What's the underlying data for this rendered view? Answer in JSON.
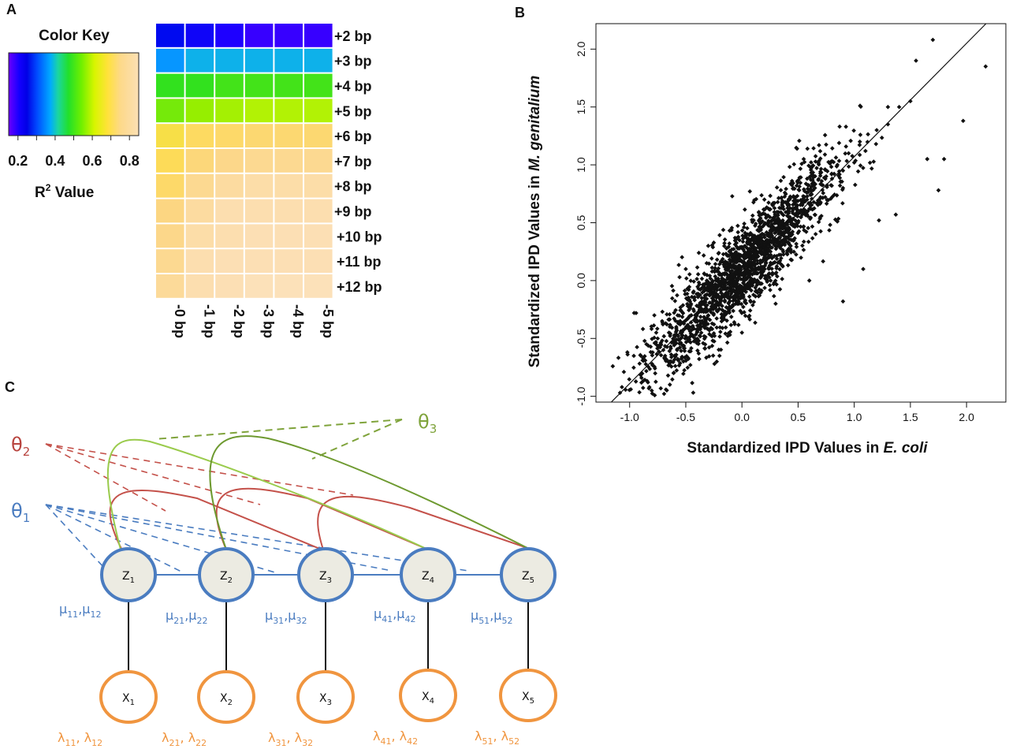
{
  "panels": {
    "a": "A",
    "b": "B",
    "c": "C"
  },
  "colors": {
    "blue": "#4a7cc0",
    "red": "#b8443f",
    "green_dark": "#6e9a30",
    "green_light": "#9acb4c",
    "orange": "#f0953f",
    "node_fill": "#ecebe2",
    "theta1": "#4a7cc0",
    "theta2": "#b8443f",
    "theta3": "#7fa33b"
  },
  "heatmap": {
    "color_key_title": "Color Key",
    "color_key_ticks": [
      "0.2",
      "0.4",
      "0.6",
      "0.8"
    ],
    "color_key_label_main": "R",
    "color_key_label_sup": "2",
    "color_key_label_rest": " Value",
    "row_labels": [
      "+2 bp",
      "+3 bp",
      "+4 bp",
      "+5 bp",
      "+6 bp",
      "+7 bp",
      "+8 bp",
      "+9 bp",
      "+10 bp",
      "+11 bp",
      "+12 bp"
    ],
    "col_labels": [
      "-0 bp",
      "-1 bp",
      "-2 bp",
      "-3 bp",
      "-4 bp",
      "-5 bp"
    ]
  },
  "chart_data": [
    {
      "type": "heatmap",
      "title": "",
      "rows": [
        "+2 bp",
        "+3 bp",
        "+4 bp",
        "+5 bp",
        "+6 bp",
        "+7 bp",
        "+8 bp",
        "+9 bp",
        "+10 bp",
        "+11 bp",
        "+12 bp"
      ],
      "columns": [
        "-0 bp",
        "-1 bp",
        "-2 bp",
        "-3 bp",
        "-4 bp",
        "-5 bp"
      ],
      "value_label": "R² Value",
      "range": [
        0.15,
        0.85
      ],
      "values": [
        [
          0.22,
          0.2,
          0.18,
          0.17,
          0.17,
          0.17
        ],
        [
          0.36,
          0.39,
          0.39,
          0.39,
          0.39,
          0.39
        ],
        [
          0.52,
          0.52,
          0.53,
          0.53,
          0.53,
          0.53
        ],
        [
          0.56,
          0.58,
          0.59,
          0.6,
          0.6,
          0.6
        ],
        [
          0.69,
          0.72,
          0.73,
          0.74,
          0.74,
          0.74
        ],
        [
          0.71,
          0.75,
          0.77,
          0.78,
          0.78,
          0.78
        ],
        [
          0.73,
          0.78,
          0.8,
          0.81,
          0.81,
          0.81
        ],
        [
          0.76,
          0.8,
          0.82,
          0.82,
          0.82,
          0.82
        ],
        [
          0.77,
          0.81,
          0.82,
          0.83,
          0.83,
          0.83
        ],
        [
          0.78,
          0.82,
          0.83,
          0.83,
          0.83,
          0.83
        ],
        [
          0.79,
          0.82,
          0.83,
          0.84,
          0.84,
          0.84
        ]
      ]
    },
    {
      "type": "scatter",
      "title": "",
      "xlabel_plain": "Standardized IPD Values in ",
      "xlabel_italic": "E. coli",
      "ylabel_plain": "Standardized IPD Values in ",
      "ylabel_italic": "M. genitalium",
      "xlim": [
        -1.3,
        2.35
      ],
      "ylim": [
        -1.05,
        2.22
      ],
      "xticks": [
        -1.0,
        -0.5,
        0.0,
        0.5,
        1.0,
        1.5,
        2.0
      ],
      "yticks": [
        -1.0,
        -0.5,
        0.0,
        0.5,
        1.0,
        1.5,
        2.0
      ],
      "xtick_labels": [
        "-1.0",
        "-0.5",
        "0.0",
        "0.5",
        "1.0",
        "1.5",
        "2.0"
      ],
      "ytick_labels": [
        "-1.0",
        "-0.5",
        "0.0",
        "0.5",
        "1.0",
        "1.5",
        "2.0"
      ],
      "fit_line": {
        "slope": 0.98,
        "intercept": 0.09
      },
      "points_summary": "about 2000 points tightly clustered along the fit line, x range about -1.15 to 2.2",
      "points": [
        [
          -1.15,
          -0.74
        ],
        [
          -1.02,
          -0.62
        ],
        [
          -0.96,
          -0.28
        ],
        [
          -0.9,
          -0.65
        ],
        [
          -0.85,
          -0.55
        ],
        [
          -0.8,
          -0.72
        ],
        [
          -0.75,
          -0.5
        ],
        [
          -0.7,
          -0.6
        ],
        [
          -0.65,
          -0.45
        ],
        [
          -0.6,
          -0.52
        ],
        [
          -0.55,
          -0.35
        ],
        [
          -0.5,
          -0.48
        ],
        [
          -0.45,
          -0.3
        ],
        [
          -0.4,
          -0.42
        ],
        [
          -0.35,
          -0.2
        ],
        [
          -0.3,
          -0.3
        ],
        [
          -0.25,
          -0.1
        ],
        [
          -0.2,
          -0.2
        ],
        [
          -0.15,
          0.0
        ],
        [
          -0.1,
          -0.05
        ],
        [
          -0.05,
          0.1
        ],
        [
          0.0,
          0.05
        ],
        [
          0.05,
          0.15
        ],
        [
          0.1,
          0.1
        ],
        [
          0.15,
          0.3
        ],
        [
          0.2,
          0.2
        ],
        [
          0.25,
          0.4
        ],
        [
          0.3,
          0.3
        ],
        [
          0.35,
          0.5
        ],
        [
          0.4,
          0.42
        ],
        [
          0.45,
          0.6
        ],
        [
          0.5,
          0.5
        ],
        [
          0.55,
          0.7
        ],
        [
          0.6,
          0.62
        ],
        [
          0.65,
          0.8
        ],
        [
          0.7,
          0.72
        ],
        [
          0.75,
          0.9
        ],
        [
          0.8,
          0.82
        ],
        [
          0.85,
          1.0
        ],
        [
          0.9,
          0.95
        ],
        [
          0.95,
          1.1
        ],
        [
          1.0,
          1.02
        ],
        [
          1.05,
          1.2
        ],
        [
          1.1,
          1.12
        ],
        [
          1.2,
          1.3
        ],
        [
          1.3,
          1.35
        ],
        [
          1.4,
          1.5
        ],
        [
          1.5,
          1.55
        ],
        [
          1.55,
          1.9
        ],
        [
          1.65,
          1.05
        ],
        [
          1.7,
          2.08
        ],
        [
          1.75,
          0.78
        ],
        [
          1.8,
          1.05
        ],
        [
          1.97,
          1.38
        ],
        [
          2.17,
          1.85
        ],
        [
          1.37,
          0.57
        ],
        [
          1.08,
          0.1
        ],
        [
          0.9,
          -0.18
        ],
        [
          -0.78,
          -0.3
        ],
        [
          -0.5,
          0.1
        ],
        [
          -0.3,
          0.3
        ],
        [
          0.2,
          0.7
        ],
        [
          0.55,
          1.05
        ],
        [
          0.3,
          -0.2
        ],
        [
          0.0,
          -0.45
        ],
        [
          -0.2,
          -0.65
        ],
        [
          0.6,
          0.0
        ],
        [
          1.22,
          0.52
        ],
        [
          1.3,
          1.5
        ]
      ]
    }
  ],
  "model": {
    "theta1": "θ",
    "theta1_sub": "1",
    "theta2": "θ",
    "theta2_sub": "2",
    "theta3": "θ",
    "theta3_sub": "3",
    "z_nodes": [
      {
        "main": "Z",
        "sub": "1"
      },
      {
        "main": "Z",
        "sub": "2"
      },
      {
        "main": "Z",
        "sub": "3"
      },
      {
        "main": "Z",
        "sub": "4"
      },
      {
        "main": "Z",
        "sub": "5"
      }
    ],
    "x_nodes": [
      {
        "main": "X",
        "sub": "1"
      },
      {
        "main": "X",
        "sub": "2"
      },
      {
        "main": "X",
        "sub": "3"
      },
      {
        "main": "X",
        "sub": "4"
      },
      {
        "main": "X",
        "sub": "5"
      }
    ],
    "mu_labels": [
      {
        "a": "μ",
        "a_sub": "11",
        "b": "μ",
        "b_sub": "12"
      },
      {
        "a": "μ",
        "a_sub": "21",
        "b": "μ",
        "b_sub": "22"
      },
      {
        "a": "μ",
        "a_sub": "31",
        "b": "μ",
        "b_sub": "32"
      },
      {
        "a": "μ",
        "a_sub": "41",
        "b": "μ",
        "b_sub": "42"
      },
      {
        "a": "μ",
        "a_sub": "51",
        "b": "μ",
        "b_sub": "52"
      }
    ],
    "lambda_labels": [
      {
        "a": "λ",
        "a_sub": "11",
        "b": "λ",
        "b_sub": "12"
      },
      {
        "a": "λ",
        "a_sub": "21",
        "b": "λ",
        "b_sub": "22"
      },
      {
        "a": "λ",
        "a_sub": "31",
        "b": "λ",
        "b_sub": "32"
      },
      {
        "a": "λ",
        "a_sub": "41",
        "b": "λ",
        "b_sub": "42"
      },
      {
        "a": "λ",
        "a_sub": "51",
        "b": "λ",
        "b_sub": "52"
      }
    ]
  }
}
